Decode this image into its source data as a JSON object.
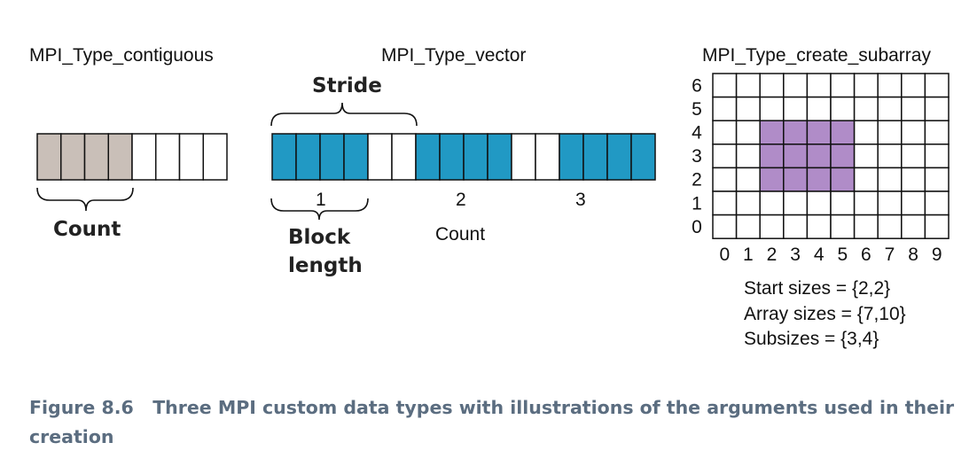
{
  "panels": {
    "contiguous": {
      "title": "MPI_Type_contiguous",
      "count_label": "Count",
      "filled_cells": 4,
      "total_cells": 8
    },
    "vector": {
      "title": "MPI_Type_vector",
      "stride_label": "Stride",
      "block_label_line1": "Block",
      "block_label_line2": "length",
      "count_label": "Count",
      "block_numbers": [
        "1",
        "2",
        "3"
      ],
      "blocks": 3,
      "block_length": 4,
      "stride": 6
    },
    "subarray": {
      "title": "MPI_Type_create_subarray",
      "y_labels": [
        "0",
        "1",
        "2",
        "3",
        "4",
        "5",
        "6"
      ],
      "x_labels": [
        "0",
        "1",
        "2",
        "3",
        "4",
        "5",
        "6",
        "7",
        "8",
        "9"
      ],
      "start_sizes": "Start sizes = {2,2}",
      "array_sizes": "Array sizes = {7,10}",
      "subsizes": "Subsizes = {3,4}",
      "start": [
        2,
        2
      ],
      "sub": [
        3,
        4
      ]
    }
  },
  "caption": {
    "label": "Figure 8.6",
    "text": "Three MPI custom data types with illustrations of the arguments used in their creation"
  },
  "colors": {
    "contiguous_fill": "#c9bfb8",
    "vector_fill": "#2199c4",
    "subarray_fill": "#b08cc8",
    "stroke": "#111111"
  }
}
